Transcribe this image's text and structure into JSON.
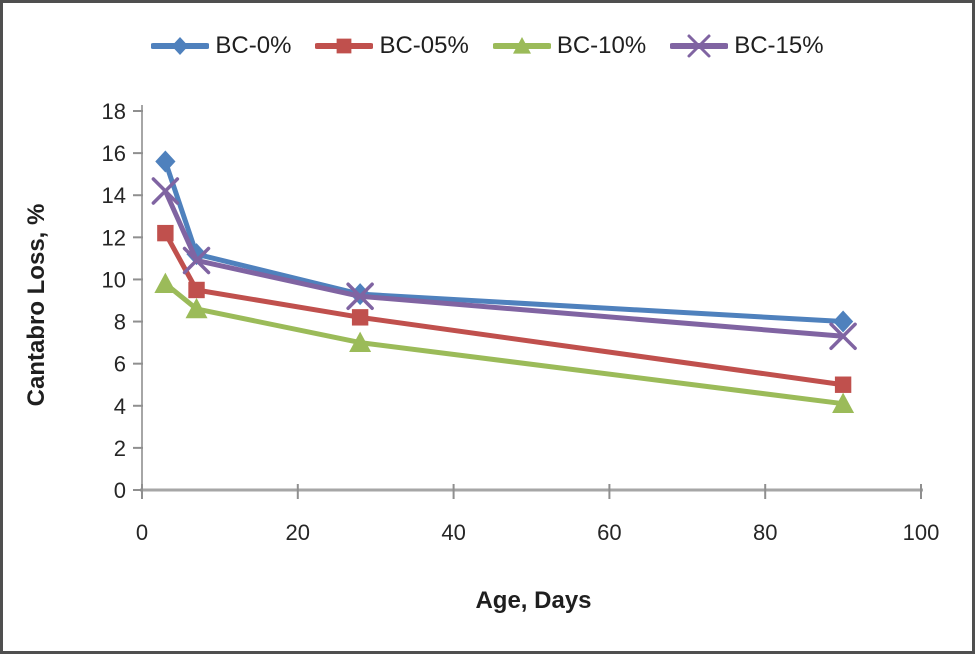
{
  "figure": {
    "border_color": "#4f4f4f",
    "background": "#ffffff"
  },
  "chart_data": {
    "type": "line",
    "title": "",
    "xlabel": "Age, Days",
    "ylabel": "Cantabro Loss, %",
    "x": [
      3,
      7,
      28,
      90
    ],
    "series": [
      {
        "name": "BC-0%",
        "color": "#4F81BD",
        "marker": "diamond",
        "values": [
          15.6,
          11.2,
          9.3,
          8.0
        ]
      },
      {
        "name": "BC-05%",
        "color": "#C0504D",
        "marker": "square",
        "values": [
          12.2,
          9.5,
          8.2,
          5.0
        ]
      },
      {
        "name": "BC-10%",
        "color": "#9BBB59",
        "marker": "triangle",
        "values": [
          9.8,
          8.6,
          7.0,
          4.1
        ]
      },
      {
        "name": "BC-15%",
        "color": "#8064A2",
        "marker": "x",
        "values": [
          14.2,
          10.9,
          9.2,
          7.3
        ]
      }
    ],
    "xlim": [
      0,
      100
    ],
    "xticks": [
      0,
      20,
      40,
      60,
      80,
      100
    ],
    "ylim": [
      0,
      18
    ],
    "yticks": [
      0,
      2,
      4,
      6,
      8,
      10,
      12,
      14,
      16,
      18
    ],
    "grid": false,
    "legend_position": "top",
    "axis_color": "#a6a6a6",
    "tick_color": "#8f8f8f",
    "tick_label_color": "#262626"
  }
}
